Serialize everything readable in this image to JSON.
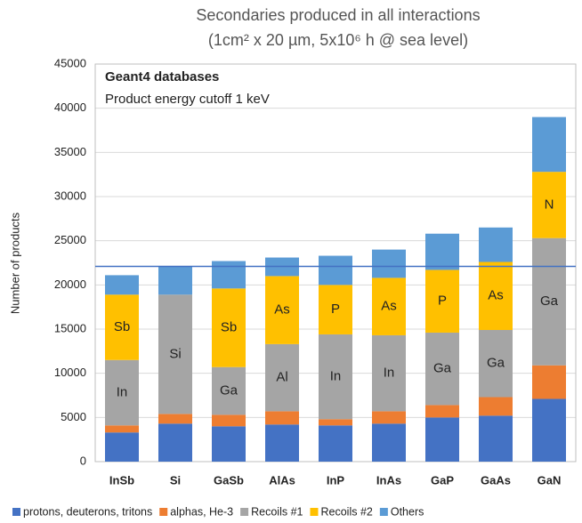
{
  "chart_data": {
    "type": "stacked_bar",
    "title": [
      "Secondaries produced in all interactions",
      "(1cm² x 20 µm, 5x10⁶ h @ sea level)"
    ],
    "ylabel": "Number of products",
    "box_texts": [
      "Geant4 databases",
      "Product energy cutoff 1 keV"
    ],
    "categories": [
      "InSb",
      "Si",
      "GaSb",
      "AlAs",
      "InP",
      "InAs",
      "GaP",
      "GaAs",
      "GaN"
    ],
    "series": [
      {
        "name": "protons, deuterons, tritons",
        "color": "#4472c4",
        "values": [
          3300,
          4300,
          4000,
          4200,
          4100,
          4300,
          5000,
          5200,
          7100
        ]
      },
      {
        "name": "alphas, He-3",
        "color": "#ed7d31",
        "values": [
          800,
          1100,
          1300,
          1500,
          700,
          1400,
          1400,
          2100,
          3800
        ]
      },
      {
        "name": "Recoils #1",
        "color": "#a5a5a5",
        "values": [
          7400,
          13500,
          5400,
          7600,
          9600,
          8600,
          8200,
          7600,
          14400
        ],
        "labels": [
          "In",
          "Si",
          "Ga",
          "Al",
          "In",
          "In",
          "Ga",
          "Ga",
          "Ga"
        ]
      },
      {
        "name": "Recoils #2",
        "color": "#ffc000",
        "values": [
          7400,
          0,
          8900,
          7700,
          5600,
          6500,
          7100,
          7700,
          7500
        ],
        "labels": [
          "Sb",
          null,
          "Sb",
          "As",
          "P",
          "As",
          "P",
          "As",
          "N"
        ]
      },
      {
        "name": "Others",
        "color": "#5b9bd5",
        "values": [
          2200,
          3200,
          3100,
          2100,
          3300,
          3200,
          4100,
          3900,
          6200
        ]
      }
    ],
    "reference_line": {
      "value": 22100,
      "color": "#4472c4"
    },
    "ylim": [
      0,
      45000
    ],
    "yticks": [
      0,
      5000,
      10000,
      15000,
      20000,
      25000,
      30000,
      35000,
      40000,
      45000
    ],
    "grid": true,
    "legend": "bottom"
  }
}
